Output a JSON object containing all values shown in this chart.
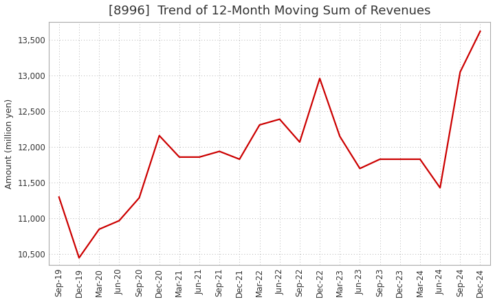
{
  "title": "[8996]  Trend of 12-Month Moving Sum of Revenues",
  "ylabel": "Amount (million yen)",
  "background_color": "#ffffff",
  "line_color": "#cc0000",
  "grid_color": "#b0b0b0",
  "x_labels": [
    "Sep-19",
    "Dec-19",
    "Mar-20",
    "Jun-20",
    "Sep-20",
    "Dec-20",
    "Mar-21",
    "Jun-21",
    "Sep-21",
    "Dec-21",
    "Mar-22",
    "Jun-22",
    "Sep-22",
    "Dec-22",
    "Mar-23",
    "Jun-23",
    "Sep-23",
    "Dec-23",
    "Mar-24",
    "Jun-24",
    "Sep-24",
    "Dec-24"
  ],
  "y_values": [
    11300,
    10450,
    10850,
    10970,
    11290,
    12160,
    11860,
    11860,
    11940,
    11830,
    12310,
    12390,
    12070,
    12960,
    12150,
    11700,
    11830,
    11830,
    11830,
    11430,
    13050,
    13620
  ],
  "ylim": [
    10350,
    13750
  ],
  "yticks": [
    10500,
    11000,
    11500,
    12000,
    12500,
    13000,
    13500
  ],
  "title_fontsize": 13,
  "ylabel_fontsize": 9,
  "tick_fontsize": 8.5,
  "line_width": 1.6
}
